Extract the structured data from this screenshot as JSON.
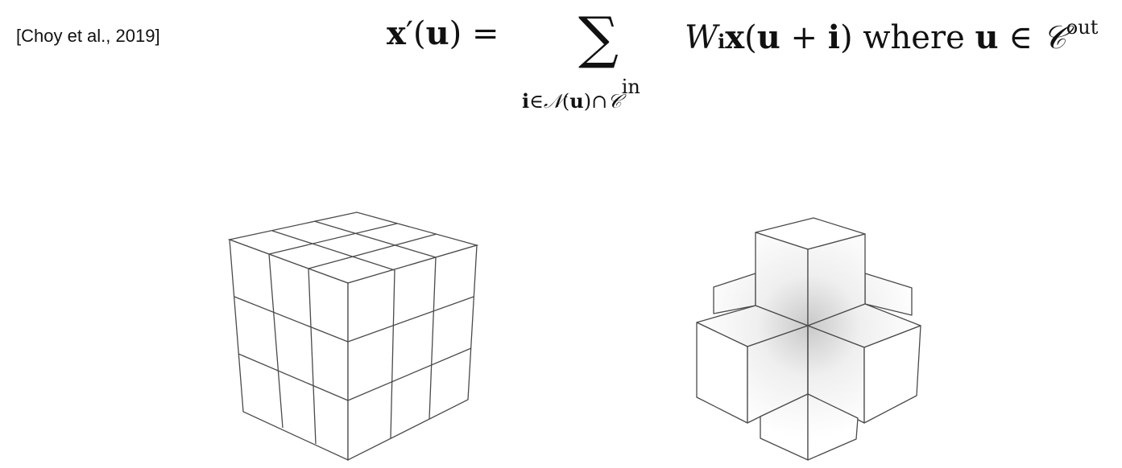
{
  "citation": "[Choy et al., 2019]",
  "formula": {
    "lhs_x": "x",
    "lhs_prime": "′",
    "lhs_open": "(",
    "lhs_u": "u",
    "lhs_close_eq": ") =",
    "sum_symbol": "∑",
    "sub_i": "i",
    "sub_in": "∈",
    "sub_N": "𝒩",
    "sub_open": "(",
    "sub_u": "u",
    "sub_close_cap": ")∩",
    "sub_C": "𝒞",
    "sub_in_sup": "in",
    "rhs_W": "W",
    "rhs_i": "i",
    "rhs_x": "x",
    "rhs_open": "(",
    "rhs_u": "u",
    "rhs_plus": " + ",
    "rhs_i2": "i",
    "rhs_close": ")",
    "rhs_where": " where ",
    "rhs_u2": "u",
    "rhs_elem": " ∈ ",
    "rhs_C": "𝒞",
    "rhs_out_sup": "out"
  },
  "colors": {
    "stroke": "#4a4a4a",
    "face": "#ffffff",
    "shade": "#dcdcdc"
  }
}
